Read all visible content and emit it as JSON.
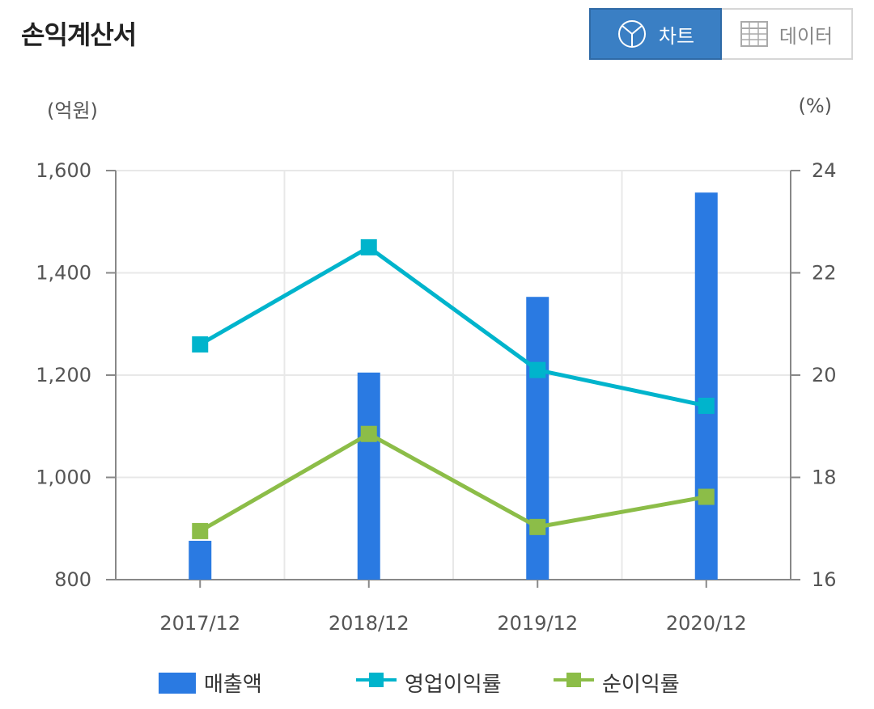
{
  "title": "손익계산서",
  "toggle": {
    "chart_label": "차트",
    "data_label": "데이터"
  },
  "units": {
    "left": "(억원)",
    "right": "(%)"
  },
  "colors": {
    "bar": "#2a7ae2",
    "op_margin": "#00b4cc",
    "net_margin": "#8cbd48",
    "active_button": "#3a7fc4"
  },
  "chart_data": {
    "type": "bar",
    "categories": [
      "2017/12",
      "2018/12",
      "2019/12",
      "2020/12"
    ],
    "series": [
      {
        "name": "매출액",
        "type": "bar",
        "axis": "left",
        "values": [
          876,
          1205,
          1353,
          1557
        ]
      },
      {
        "name": "영업이익률",
        "type": "line",
        "axis": "right",
        "values": [
          20.6,
          22.5,
          20.1,
          19.4
        ]
      },
      {
        "name": "순이익률",
        "type": "line",
        "axis": "right",
        "values": [
          16.95,
          18.85,
          17.03,
          17.62
        ]
      }
    ],
    "ylim_left": [
      800,
      1600
    ],
    "ylim_right": [
      16,
      24
    ],
    "yticks_left": [
      "800",
      "1,000",
      "1,200",
      "1,400",
      "1,600"
    ],
    "yticks_right": [
      "16",
      "18",
      "20",
      "22",
      "24"
    ],
    "grid": true,
    "legend_position": "bottom"
  }
}
